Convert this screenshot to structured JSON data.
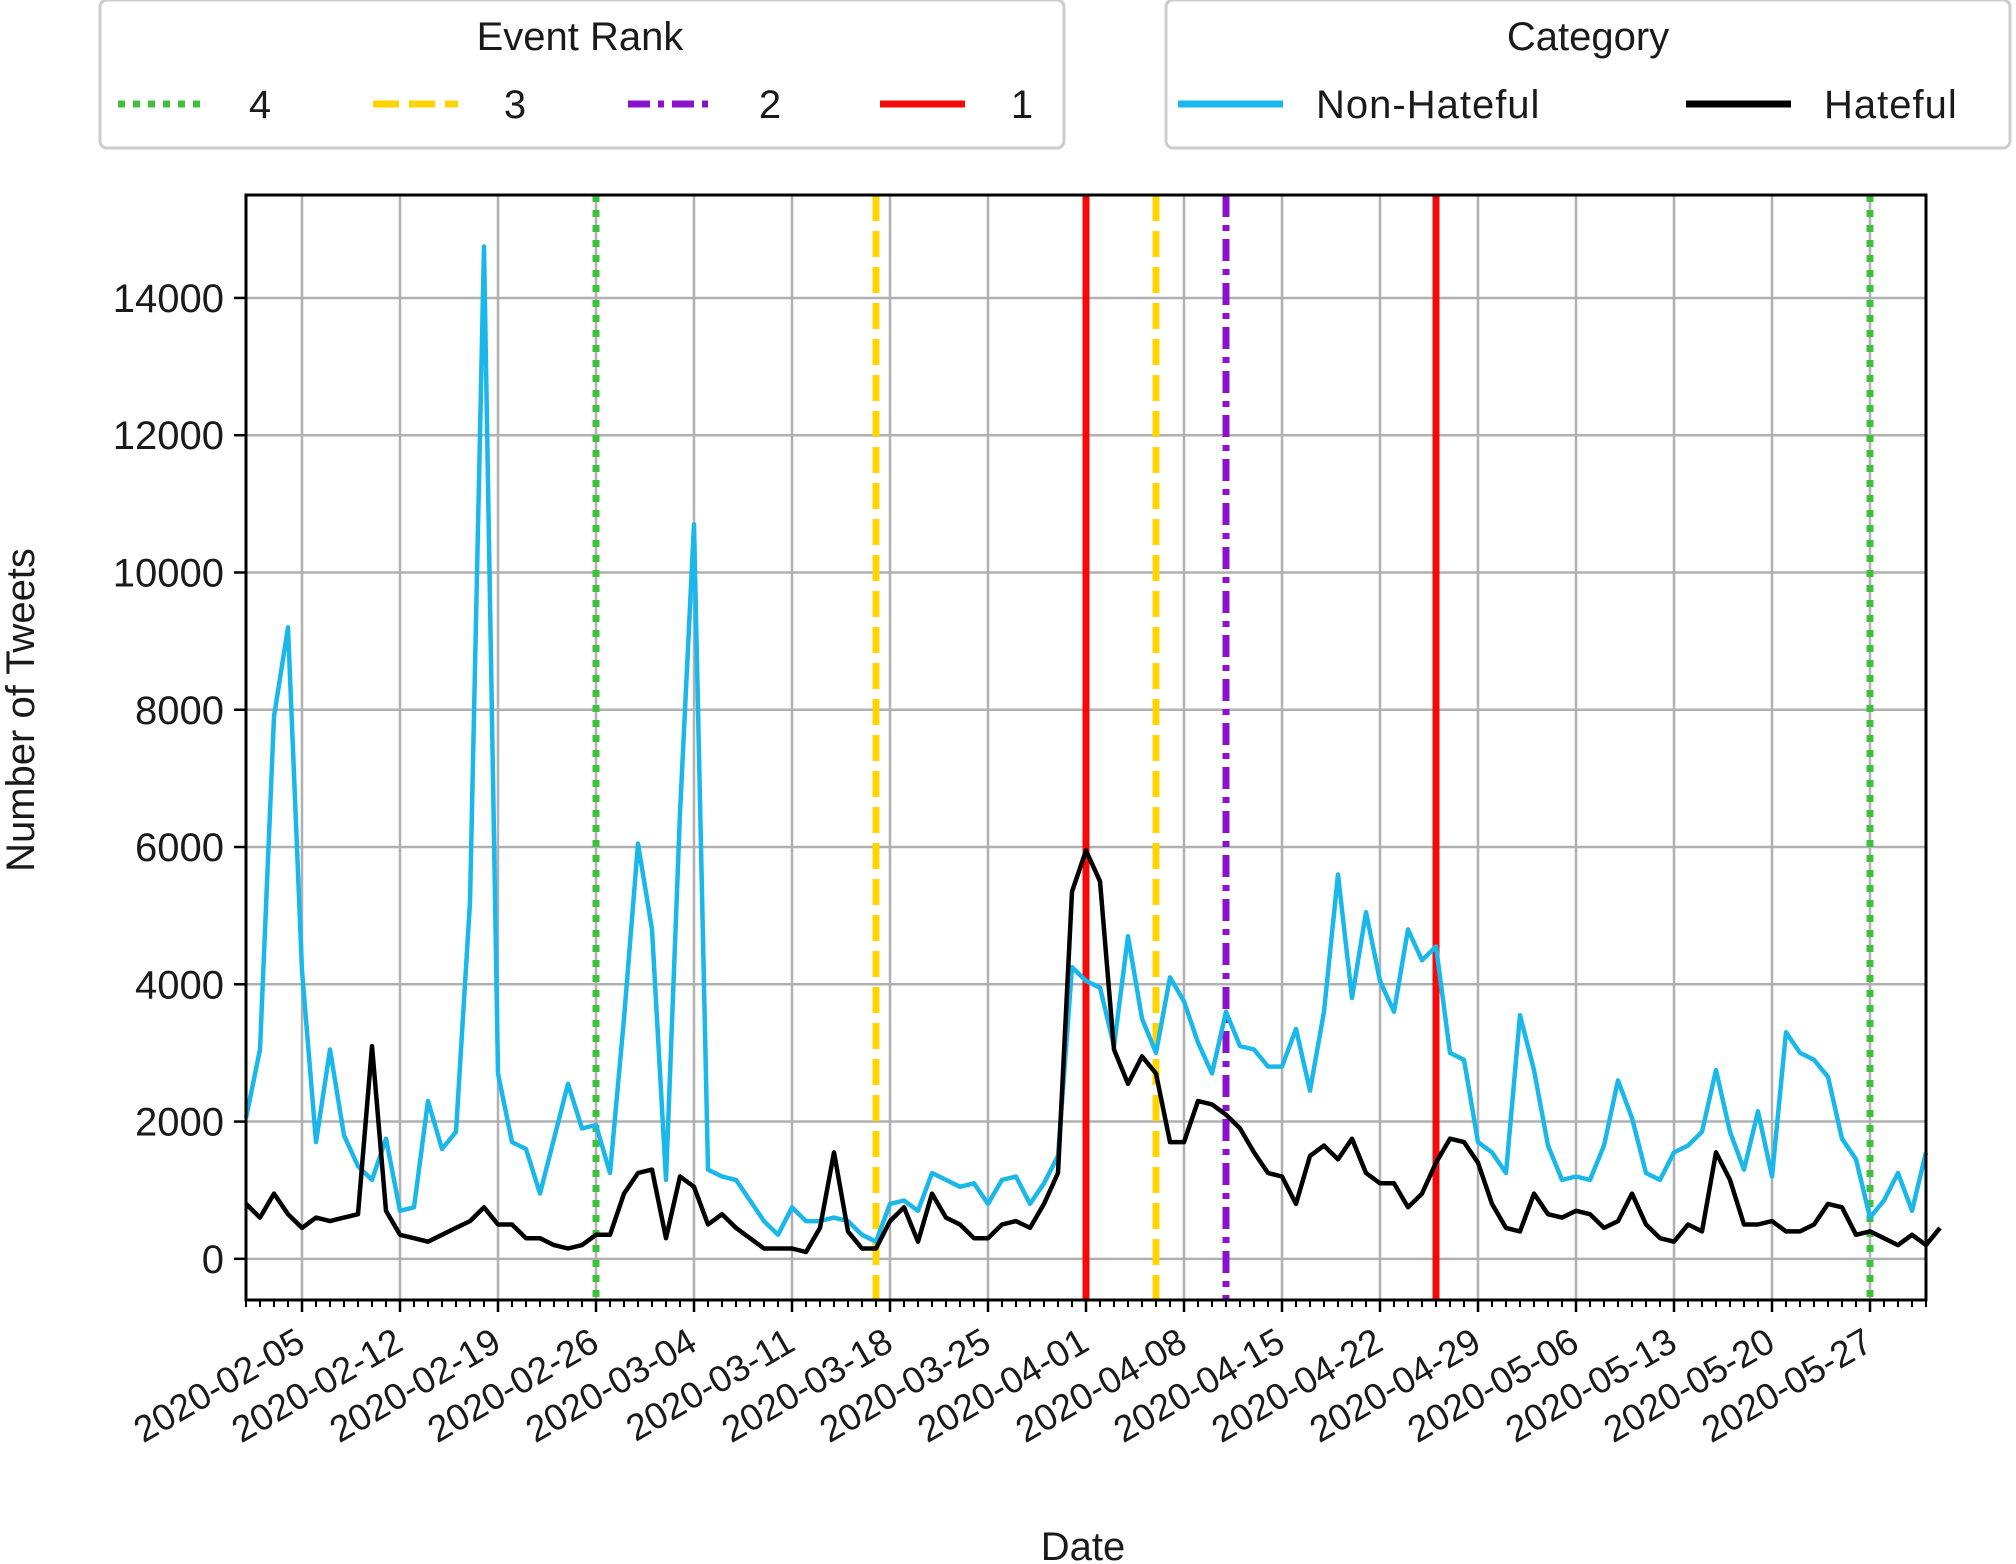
{
  "chart_data": {
    "type": "line",
    "xlabel": "Date",
    "ylabel": "Number of Tweets",
    "x_start": "2020-02-01",
    "x_end": "2020-05-31",
    "xlim": [
      "2020-02-01",
      "2020-05-31"
    ],
    "ylim": [
      -600,
      15500
    ],
    "grid": true,
    "xticks": [
      "2020-02-05",
      "2020-02-12",
      "2020-02-19",
      "2020-02-26",
      "2020-03-04",
      "2020-03-11",
      "2020-03-18",
      "2020-03-25",
      "2020-04-01",
      "2020-04-08",
      "2020-04-15",
      "2020-04-22",
      "2020-04-29",
      "2020-05-06",
      "2020-05-13",
      "2020-05-20",
      "2020-05-27"
    ],
    "yticks": [
      0,
      2000,
      4000,
      6000,
      8000,
      10000,
      12000,
      14000
    ],
    "series": [
      {
        "name": "Non-Hateful",
        "color": "#1ab8ea",
        "values": [
          2050,
          3050,
          7900,
          9200,
          4200,
          1700,
          3050,
          1800,
          1350,
          1150,
          1750,
          700,
          750,
          2300,
          1600,
          1850,
          5200,
          14750,
          2700,
          1700,
          1600,
          950,
          1750,
          2550,
          1900,
          1950,
          1250,
          3500,
          6050,
          4800,
          1150,
          6500,
          10700,
          1300,
          1200,
          1150,
          850,
          550,
          350,
          750,
          550,
          550,
          600,
          550,
          350,
          250,
          800,
          850,
          700,
          1250,
          1150,
          1050,
          1100,
          800,
          1150,
          1200,
          800,
          1100,
          1500,
          4250,
          4050,
          3950,
          3100,
          4700,
          3500,
          3000,
          4100,
          3750,
          3150,
          2700,
          3600,
          3100,
          3050,
          2800,
          2800,
          3350,
          2450,
          3600,
          5600,
          3800,
          5050,
          4050,
          3600,
          4800,
          4350,
          4550,
          3000,
          2900,
          1700,
          1550,
          1250,
          3550,
          2750,
          1650,
          1150,
          1200,
          1150,
          1650,
          2600,
          2050,
          1250,
          1150,
          1550,
          1650,
          1850,
          2750,
          1850,
          1300,
          2150,
          1200,
          3300,
          3000,
          2900,
          2650,
          1750,
          1450,
          600,
          850,
          1250,
          700,
          1550
        ],
        "values_note": ""
      },
      {
        "name": "Hateful",
        "color": "#000000",
        "values": [
          800,
          600,
          950,
          650,
          450,
          600,
          550,
          600,
          650,
          3100,
          700,
          350,
          300,
          250,
          350,
          450,
          550,
          750,
          500,
          500,
          300,
          300,
          200,
          150,
          200,
          350,
          350,
          950,
          1250,
          1300,
          300,
          1200,
          1050,
          500,
          650,
          450,
          300,
          150,
          150,
          150,
          100,
          450,
          1550,
          400,
          150,
          150,
          550,
          750,
          250,
          950,
          600,
          500,
          300,
          300,
          500,
          550,
          450,
          800,
          1250,
          5350,
          5950,
          5500,
          3050,
          2550,
          2950,
          2700,
          1700,
          1700,
          2300,
          2250,
          2100,
          1900,
          1550,
          1250,
          1200,
          800,
          1500,
          1650,
          1450,
          1750,
          1250,
          1100,
          1100,
          750,
          950,
          1400,
          1750,
          1700,
          1400,
          800,
          450,
          400,
          950,
          650,
          600,
          700,
          650,
          450,
          550,
          950,
          500,
          300,
          250,
          500,
          400,
          1550,
          1150,
          500,
          500,
          550,
          400,
          400,
          500,
          800,
          750,
          350,
          400,
          300,
          200,
          350,
          200,
          450
        ]
      }
    ],
    "event_lines": [
      {
        "date": "2020-02-26",
        "rank": "4"
      },
      {
        "date": "2020-03-17",
        "rank": "3"
      },
      {
        "date": "2020-04-01",
        "rank": "1"
      },
      {
        "date": "2020-04-06",
        "rank": "3"
      },
      {
        "date": "2020-04-11",
        "rank": "2"
      },
      {
        "date": "2020-04-26",
        "rank": "1"
      },
      {
        "date": "2020-05-27",
        "rank": "4"
      }
    ],
    "legends": {
      "event_rank": {
        "title": "Event Rank",
        "entries": [
          {
            "label": "4",
            "color": "#3cc13b",
            "style": "dotted"
          },
          {
            "label": "3",
            "color": "#ffd400",
            "style": "dashed"
          },
          {
            "label": "2",
            "color": "#8a12cc",
            "style": "dashdot"
          },
          {
            "label": "1",
            "color": "#f50a0a",
            "style": "solid"
          }
        ],
        "placement": "top-left"
      },
      "category": {
        "title": "Category",
        "entries": [
          {
            "label": "Non-Hateful",
            "color": "#1ab8ea"
          },
          {
            "label": "Hateful",
            "color": "#000000"
          }
        ],
        "placement": "top-right"
      }
    }
  }
}
